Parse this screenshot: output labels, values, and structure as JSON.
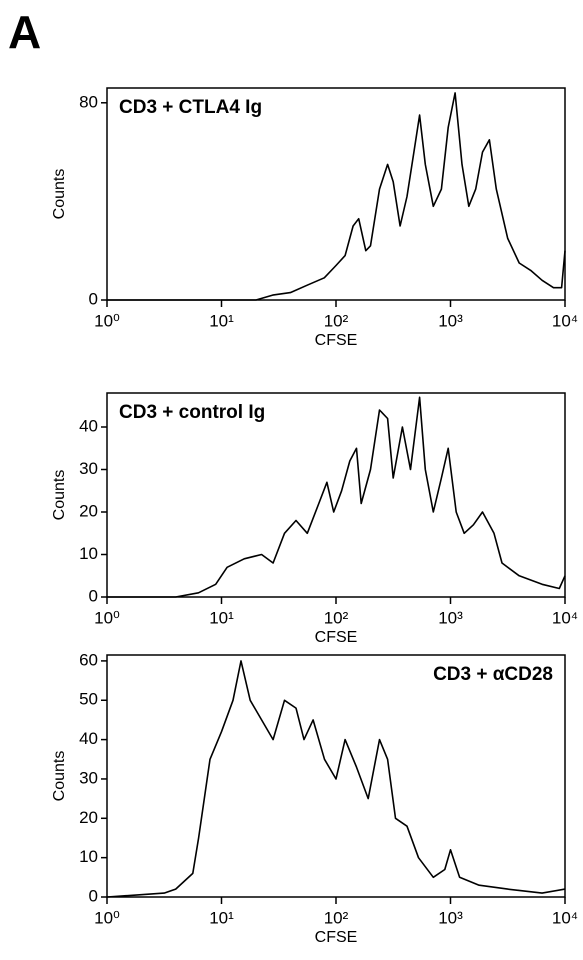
{
  "panel_label": "A",
  "chart_data": [
    {
      "type": "line",
      "annotation": "CD3 + CTLA4 Ig",
      "annotation_corner": "top-left",
      "xlabel": "CFSE",
      "ylabel": "Counts",
      "xscale": "log",
      "color": "#000000",
      "xlim": [
        1,
        10000
      ],
      "xticks": [
        {
          "value": 1,
          "label": "10⁰"
        },
        {
          "value": 10,
          "label": "10¹"
        },
        {
          "value": 100,
          "label": "10²"
        },
        {
          "value": 1000,
          "label": "10³"
        },
        {
          "value": 10000,
          "label": "10⁴"
        }
      ],
      "ylim": [
        0,
        86
      ],
      "yticks": [
        0,
        80
      ],
      "x": [
        1,
        10,
        20,
        28,
        40,
        56,
        79,
        100,
        120,
        141,
        158,
        182,
        200,
        240,
        282,
        316,
        363,
        417,
        479,
        537,
        603,
        708,
        832,
        955,
        1096,
        1259,
        1445,
        1660,
        1905,
        2188,
        2512,
        3162,
        3981,
        5012,
        6310,
        7943,
        9333,
        10000
      ],
      "values": [
        0,
        0,
        0,
        2,
        3,
        6,
        9,
        14,
        18,
        30,
        33,
        20,
        22,
        45,
        55,
        48,
        30,
        42,
        60,
        75,
        55,
        38,
        45,
        70,
        84,
        55,
        38,
        45,
        60,
        65,
        45,
        25,
        15,
        12,
        8,
        5,
        5,
        20
      ]
    },
    {
      "type": "line",
      "annotation": "CD3 + control Ig",
      "annotation_corner": "top-left",
      "xlabel": "CFSE",
      "ylabel": "Counts",
      "xscale": "log",
      "color": "#000000",
      "xlim": [
        1,
        10000
      ],
      "xticks": [
        {
          "value": 1,
          "label": "10⁰"
        },
        {
          "value": 10,
          "label": "10¹"
        },
        {
          "value": 100,
          "label": "10²"
        },
        {
          "value": 1000,
          "label": "10³"
        },
        {
          "value": 10000,
          "label": "10⁴"
        }
      ],
      "ylim": [
        0,
        48
      ],
      "yticks": [
        0,
        10,
        20,
        30,
        40
      ],
      "x": [
        1,
        3.98,
        6.3,
        8.9,
        11.2,
        15.8,
        22.4,
        28.2,
        35.5,
        44.7,
        56.2,
        70.8,
        83.2,
        95.5,
        112,
        132,
        151,
        166,
        200,
        240,
        282,
        316,
        380,
        447,
        537,
        603,
        708,
        832,
        955,
        1122,
        1318,
        1585,
        1905,
        2399,
        2818,
        3981,
        6310,
        8913,
        10000
      ],
      "values": [
        0,
        0,
        1,
        3,
        7,
        9,
        10,
        8,
        15,
        18,
        15,
        22,
        27,
        20,
        25,
        32,
        35,
        22,
        30,
        44,
        42,
        28,
        40,
        30,
        47,
        30,
        20,
        28,
        35,
        20,
        15,
        17,
        20,
        15,
        8,
        5,
        3,
        2,
        5
      ]
    },
    {
      "type": "line",
      "annotation": "CD3 + αCD28",
      "annotation_corner": "top-right",
      "xlabel": "CFSE",
      "ylabel": "Counts",
      "xscale": "log",
      "color": "#000000",
      "xlim": [
        1,
        10000
      ],
      "xticks": [
        {
          "value": 1,
          "label": "10⁰"
        },
        {
          "value": 10,
          "label": "10¹"
        },
        {
          "value": 100,
          "label": "10²"
        },
        {
          "value": 1000,
          "label": "10³"
        },
        {
          "value": 10000,
          "label": "10⁴"
        }
      ],
      "ylim": [
        0,
        61.5
      ],
      "yticks": [
        0,
        10,
        20,
        30,
        40,
        50,
        60
      ],
      "x": [
        1,
        3.16,
        3.98,
        5.62,
        6.31,
        7.94,
        10,
        12.6,
        14.8,
        17.8,
        22.4,
        28.2,
        35.5,
        44.7,
        52.5,
        63.1,
        79.4,
        100,
        120,
        151,
        191,
        240,
        282,
        331,
        417,
        525,
        708,
        891,
        1000,
        1202,
        1778,
        3162,
        6310,
        10000
      ],
      "values": [
        0,
        1,
        2,
        6,
        15,
        35,
        42,
        50,
        60,
        50,
        45,
        40,
        50,
        48,
        40,
        45,
        35,
        30,
        40,
        33,
        25,
        40,
        35,
        20,
        18,
        10,
        5,
        7,
        12,
        5,
        3,
        2,
        1,
        2
      ]
    }
  ]
}
